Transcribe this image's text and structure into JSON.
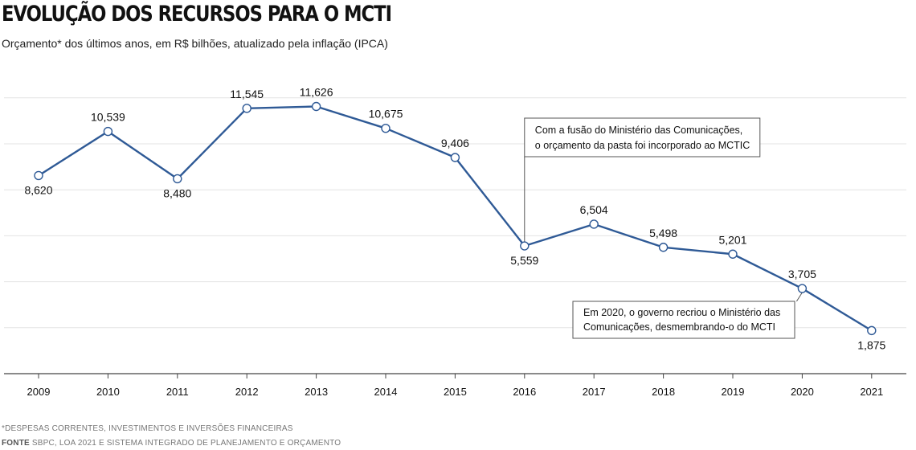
{
  "header": {
    "title": "EVOLUÇÃO DOS RECURSOS PARA O MCTI",
    "subtitle": "Orçamento* dos últimos anos, em R$ bilhões, atualizado pela inflação (IPCA)"
  },
  "footer": {
    "footnote": "*DESPESAS CORRENTES, INVESTIMENTOS E INVERSÕES FINANCEIRAS",
    "source_label": "FONTE",
    "source_text": "SBPC, LOA 2021 E SISTEMA INTEGRADO DE PLANEJAMENTO E ORÇAMENTO"
  },
  "chart_data": {
    "type": "line",
    "title": "EVOLUÇÃO DOS RECURSOS PARA O MCTI",
    "subtitle": "Orçamento* dos últimos anos, em R$ bilhões, atualizado pela inflação (IPCA)",
    "xlabel": "",
    "ylabel": "",
    "categories": [
      "2009",
      "2010",
      "2011",
      "2012",
      "2013",
      "2014",
      "2015",
      "2016",
      "2017",
      "2018",
      "2019",
      "2020",
      "2021"
    ],
    "values": [
      8.62,
      10.539,
      8.48,
      11.545,
      11.626,
      10.675,
      9.406,
      5.559,
      6.504,
      5.498,
      5.201,
      3.705,
      1.875
    ],
    "value_labels": [
      "8,620",
      "10,539",
      "8,480",
      "11,545",
      "11,626",
      "10,675",
      "9,406",
      "5,559",
      "6,504",
      "5,498",
      "5,201",
      "3,705",
      "1,875"
    ],
    "ylim": [
      0,
      12.5
    ],
    "grid": true,
    "legend": "none",
    "colors": {
      "line": "#2f5a96",
      "marker_fill": "#ffffff",
      "grid": "#e3e3e3",
      "axis": "#444444"
    },
    "annotations": [
      {
        "category": "2016",
        "text_lines": [
          "Com a fusão do Ministério das Comunicações,",
          "o orçamento da pasta foi incorporado ao MCTIC"
        ]
      },
      {
        "category": "2020",
        "text_lines": [
          "Em 2020, o governo recriou o Ministério das",
          "Comunicações, desmembrando-o do MCTI"
        ]
      }
    ]
  }
}
